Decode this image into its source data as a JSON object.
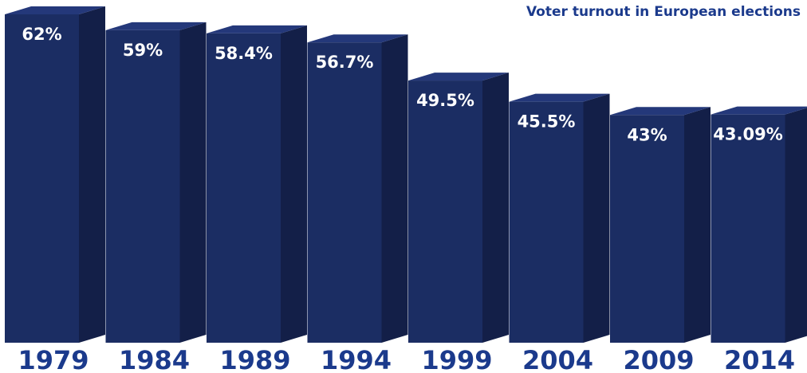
{
  "chart_data": {
    "type": "bar",
    "title": "Voter turnout in European elections",
    "categories": [
      "1979",
      "1984",
      "1989",
      "1994",
      "1999",
      "2004",
      "2009",
      "2014"
    ],
    "values": [
      62,
      59,
      58.4,
      56.7,
      49.5,
      45.5,
      43,
      43.09
    ],
    "value_labels": [
      "62%",
      "59%",
      "58.4%",
      "56.7%",
      "49.5%",
      "45.5%",
      "43%",
      "43.09%"
    ],
    "xlabel": "",
    "ylabel": "",
    "ylim": [
      0,
      62
    ],
    "grid": false,
    "legend": "none",
    "colors": {
      "bar_front": "#1b2d63",
      "bar_side": "#131f48",
      "bar_top": "#24387a",
      "text_on_bar": "#ffffff",
      "year_text": "#1b3a8c",
      "title_text": "#1b3a8c"
    }
  }
}
